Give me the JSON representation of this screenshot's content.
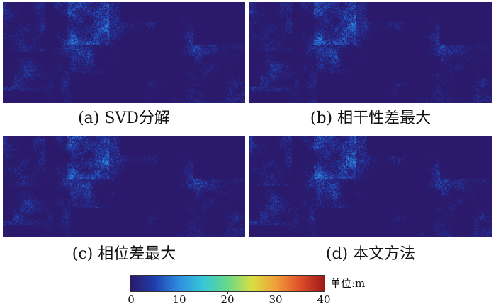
{
  "panels": [
    {
      "id": "a",
      "caption": "(a) SVD分解"
    },
    {
      "id": "b",
      "caption": "(b) 相干性差最大"
    },
    {
      "id": "c",
      "caption": "(c) 相位差最大"
    },
    {
      "id": "d",
      "caption": "(d) 本文方法"
    }
  ],
  "colorbar": {
    "min": 0,
    "max": 40,
    "ticks": [
      "0",
      "10",
      "20",
      "30",
      "40"
    ],
    "unit_label": "单位:m",
    "colormap": "jet",
    "colors": [
      "#2b1a6b",
      "#1f3fb0",
      "#2f8fe0",
      "#36c9d8",
      "#66d98a",
      "#d9e042",
      "#f0a03a",
      "#e0502a",
      "#a01a1a"
    ]
  }
}
